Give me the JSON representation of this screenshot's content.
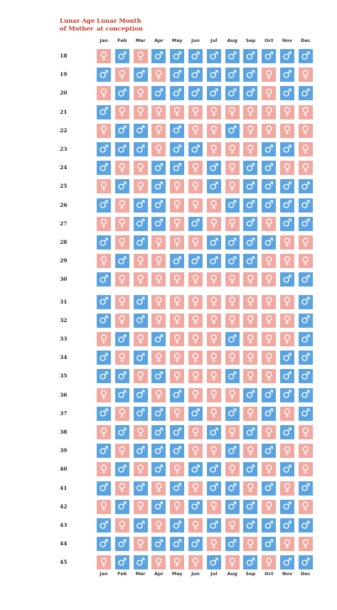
{
  "headers": {
    "age_title": [
      "Lunar Age",
      "of Mother"
    ],
    "month_title": [
      "Lunar Month",
      "at conception"
    ]
  },
  "colors": {
    "boy": "#5aa3e0",
    "girl": "#f0a8a0",
    "accent": "#c0392b"
  },
  "symbols": {
    "B": "♂",
    "G": "♀"
  },
  "months": [
    "Jan",
    "Feb",
    "Mar",
    "Apr",
    "May",
    "Jun",
    "Jul",
    "Aug",
    "Sep",
    "Oct",
    "Nov",
    "Dec"
  ],
  "rows": [
    {
      "age": "18",
      "cells": [
        "G",
        "B",
        "G",
        "B",
        "B",
        "B",
        "B",
        "B",
        "B",
        "B",
        "B",
        "B"
      ]
    },
    {
      "age": "19",
      "cells": [
        "B",
        "G",
        "B",
        "G",
        "B",
        "B",
        "B",
        "B",
        "B",
        "G",
        "B",
        "G"
      ]
    },
    {
      "age": "20",
      "cells": [
        "G",
        "B",
        "G",
        "B",
        "B",
        "B",
        "B",
        "B",
        "B",
        "G",
        "B",
        "B"
      ]
    },
    {
      "age": "21",
      "cells": [
        "B",
        "G",
        "G",
        "G",
        "G",
        "G",
        "G",
        "G",
        "G",
        "G",
        "G",
        "G"
      ]
    },
    {
      "age": "22",
      "cells": [
        "G",
        "B",
        "B",
        "G",
        "B",
        "G",
        "G",
        "B",
        "G",
        "G",
        "G",
        "G"
      ]
    },
    {
      "age": "23",
      "cells": [
        "B",
        "B",
        "B",
        "G",
        "B",
        "B",
        "G",
        "G",
        "G",
        "B",
        "B",
        "G"
      ]
    },
    {
      "age": "24",
      "cells": [
        "B",
        "G",
        "G",
        "B",
        "B",
        "G",
        "B",
        "G",
        "B",
        "B",
        "G",
        "G"
      ]
    },
    {
      "age": "25",
      "cells": [
        "G",
        "B",
        "G",
        "B",
        "G",
        "G",
        "B",
        "G",
        "B",
        "B",
        "B",
        "B"
      ]
    },
    {
      "age": "26",
      "cells": [
        "B",
        "G",
        "B",
        "B",
        "G",
        "G",
        "G",
        "B",
        "B",
        "B",
        "B",
        "B"
      ]
    },
    {
      "age": "27",
      "cells": [
        "G",
        "G",
        "B",
        "B",
        "G",
        "B",
        "G",
        "G",
        "B",
        "G",
        "B",
        "B"
      ]
    },
    {
      "age": "28",
      "cells": [
        "B",
        "G",
        "B",
        "G",
        "G",
        "G",
        "B",
        "B",
        "B",
        "B",
        "G",
        "G"
      ]
    },
    {
      "age": "29",
      "cells": [
        "G",
        "B",
        "G",
        "G",
        "B",
        "B",
        "B",
        "B",
        "B",
        "G",
        "G",
        "G"
      ]
    },
    {
      "age": "30",
      "cells": [
        "B",
        "G",
        "G",
        "G",
        "G",
        "G",
        "G",
        "G",
        "G",
        "G",
        "B",
        "B"
      ]
    },
    {
      "age": "31",
      "cells": [
        "B",
        "G",
        "B",
        "G",
        "G",
        "G",
        "G",
        "G",
        "G",
        "G",
        "G",
        "B"
      ]
    },
    {
      "age": "32",
      "cells": [
        "B",
        "G",
        "B",
        "G",
        "G",
        "G",
        "G",
        "G",
        "G",
        "G",
        "G",
        "B"
      ]
    },
    {
      "age": "33",
      "cells": [
        "G",
        "B",
        "G",
        "B",
        "G",
        "G",
        "G",
        "B",
        "G",
        "G",
        "G",
        "B"
      ]
    },
    {
      "age": "34",
      "cells": [
        "B",
        "G",
        "B",
        "G",
        "G",
        "G",
        "G",
        "G",
        "G",
        "G",
        "B",
        "B"
      ]
    },
    {
      "age": "35",
      "cells": [
        "B",
        "B",
        "G",
        "B",
        "G",
        "G",
        "G",
        "B",
        "G",
        "G",
        "B",
        "B"
      ]
    },
    {
      "age": "36",
      "cells": [
        "G",
        "B",
        "B",
        "G",
        "B",
        "G",
        "G",
        "G",
        "B",
        "B",
        "B",
        "B"
      ]
    },
    {
      "age": "37",
      "cells": [
        "B",
        "G",
        "B",
        "B",
        "G",
        "B",
        "G",
        "B",
        "G",
        "B",
        "G",
        "B"
      ]
    },
    {
      "age": "38",
      "cells": [
        "G",
        "B",
        "G",
        "B",
        "B",
        "G",
        "B",
        "G",
        "B",
        "G",
        "B",
        "G"
      ]
    },
    {
      "age": "39",
      "cells": [
        "B",
        "G",
        "B",
        "B",
        "B",
        "G",
        "G",
        "B",
        "G",
        "B",
        "G",
        "G"
      ]
    },
    {
      "age": "40",
      "cells": [
        "G",
        "B",
        "G",
        "B",
        "G",
        "B",
        "B",
        "G",
        "B",
        "G",
        "B",
        "G"
      ]
    },
    {
      "age": "41",
      "cells": [
        "B",
        "G",
        "B",
        "G",
        "B",
        "G",
        "B",
        "B",
        "G",
        "B",
        "G",
        "B"
      ]
    },
    {
      "age": "42",
      "cells": [
        "G",
        "B",
        "G",
        "B",
        "G",
        "B",
        "G",
        "B",
        "B",
        "G",
        "B",
        "G"
      ]
    },
    {
      "age": "43",
      "cells": [
        "B",
        "G",
        "B",
        "G",
        "B",
        "G",
        "B",
        "G",
        "B",
        "B",
        "B",
        "B"
      ]
    },
    {
      "age": "44",
      "cells": [
        "B",
        "B",
        "G",
        "B",
        "B",
        "B",
        "G",
        "B",
        "G",
        "B",
        "G",
        "G"
      ]
    },
    {
      "age": "45",
      "cells": [
        "G",
        "B",
        "B",
        "G",
        "G",
        "G",
        "B",
        "G",
        "B",
        "G",
        "B",
        "B"
      ]
    }
  ]
}
